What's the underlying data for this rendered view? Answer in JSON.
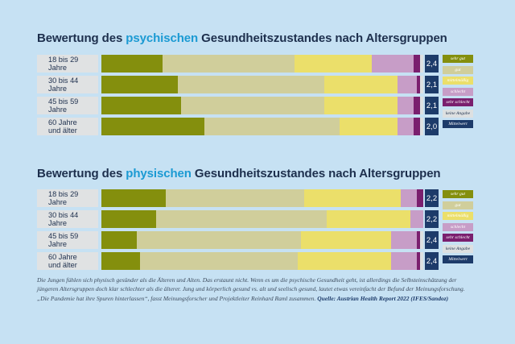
{
  "caption": {
    "text": "Die Jungen fühlen sich  physisch gesünder als die Älteren und Alten. Das erstaunt nicht. Wenn es um die psychische Gesundheit geht, ist allerdings die Selbsteinschätzung der jüngeren Altersgruppen doch klar schlechter als die älterer. Jung und körperlich gesund vs. alt und seelisch gesund, lautet etwas vereinfacht der Befund der Meinungsforschung. „Die Pandemie hat ihre Spuren hinterlassen“, fasst Meinungsforscher und Projektleiter Reinhard Raml zusammen.",
    "source": "Quelle: Austrian Health Report 2022 (IFES/Sandoz)"
  },
  "colors": {
    "sehr gut": "#848f0d",
    "gut": "#d0ce9b",
    "mittelmäßig": "#ebdf6a",
    "schlecht": "#c79dc7",
    "sehr schlecht": "#7a1f6e",
    "keine Angabe": "#dde0e1",
    "Mittelwert": "#1d3b6a"
  },
  "chart_data": [
    {
      "type": "bar",
      "stacked": true,
      "orientation": "horizontal",
      "title_parts": [
        "Bewertung des ",
        "psychischen",
        " Gesundheitszustandes nach Altersgruppen"
      ],
      "categories": [
        "18 bis 29 Jahre",
        "30 bis 44 Jahre",
        "45 bis 59 Jahre",
        "60 Jahre\nund älter"
      ],
      "series": [
        {
          "name": "sehr gut",
          "values": [
            19,
            24,
            25,
            32
          ]
        },
        {
          "name": "gut",
          "values": [
            41,
            46,
            45,
            42
          ]
        },
        {
          "name": "mittelmäßig",
          "values": [
            24,
            23,
            23,
            18
          ]
        },
        {
          "name": "schlecht",
          "values": [
            13,
            6,
            5,
            5
          ]
        },
        {
          "name": "sehr schlecht",
          "values": [
            2,
            1,
            2,
            2
          ]
        },
        {
          "name": "keine Angabe",
          "values": [
            1,
            1,
            1,
            1
          ]
        }
      ],
      "mean_label": "Mittelwert",
      "means": [
        "2,4",
        "2,1",
        "2,1",
        "2,0"
      ],
      "xlim": [
        0,
        100
      ]
    },
    {
      "type": "bar",
      "stacked": true,
      "orientation": "horizontal",
      "title_parts": [
        "Bewertung des ",
        "physischen",
        " Gesundheitszustandes nach Altersgruppen"
      ],
      "categories": [
        "18 bis 29 Jahre",
        "30 bis 44 Jahre",
        "45 bis 59 Jahre",
        "60 Jahre\nund älter"
      ],
      "series": [
        {
          "name": "sehr gut",
          "values": [
            20,
            17,
            11,
            12
          ]
        },
        {
          "name": "gut",
          "values": [
            43,
            53,
            51,
            49
          ]
        },
        {
          "name": "mittelmäßig",
          "values": [
            30,
            26,
            28,
            29
          ]
        },
        {
          "name": "schlecht",
          "values": [
            5,
            4,
            8,
            8
          ]
        },
        {
          "name": "sehr schlecht",
          "values": [
            2,
            0,
            1,
            1
          ]
        },
        {
          "name": "keine Angabe",
          "values": [
            0,
            0,
            1,
            1
          ]
        }
      ],
      "mean_label": "Mittelwert",
      "means": [
        "2,2",
        "2,2",
        "2,4",
        "2,4"
      ],
      "xlim": [
        0,
        100
      ]
    }
  ]
}
